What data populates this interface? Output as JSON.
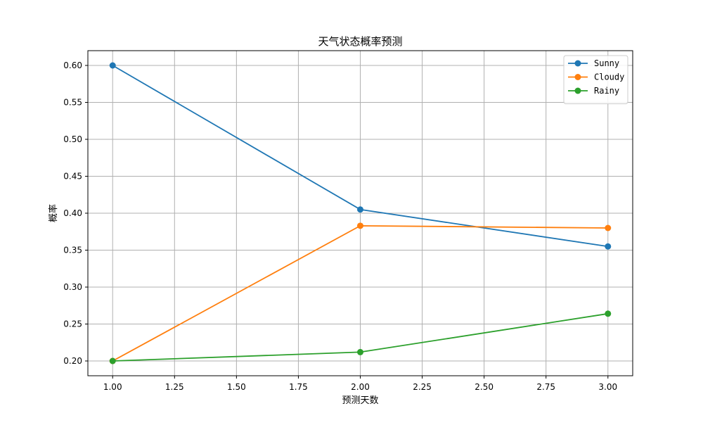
{
  "chart_data": {
    "type": "line",
    "title": "天气状态概率预测",
    "xlabel": "预测天数",
    "ylabel": "概率",
    "x": [
      1,
      2,
      3
    ],
    "xlim": [
      0.9,
      3.1
    ],
    "ylim": [
      0.18,
      0.62
    ],
    "xticks": [
      "1.00",
      "1.25",
      "1.50",
      "1.75",
      "2.00",
      "2.25",
      "2.50",
      "2.75",
      "3.00"
    ],
    "xtick_values": [
      1.0,
      1.25,
      1.5,
      1.75,
      2.0,
      2.25,
      2.5,
      2.75,
      3.0
    ],
    "yticks": [
      "0.20",
      "0.25",
      "0.30",
      "0.35",
      "0.40",
      "0.45",
      "0.50",
      "0.55",
      "0.60"
    ],
    "ytick_values": [
      0.2,
      0.25,
      0.3,
      0.35,
      0.4,
      0.45,
      0.5,
      0.55,
      0.6
    ],
    "grid": true,
    "legend_position": "top-right",
    "series": [
      {
        "name": "Sunny",
        "values": [
          0.6,
          0.405,
          0.355
        ],
        "color": "#1f77b4"
      },
      {
        "name": "Cloudy",
        "values": [
          0.2,
          0.383,
          0.38
        ],
        "color": "#ff7f0e"
      },
      {
        "name": "Rainy",
        "values": [
          0.2,
          0.212,
          0.264
        ],
        "color": "#2ca02c"
      }
    ]
  }
}
